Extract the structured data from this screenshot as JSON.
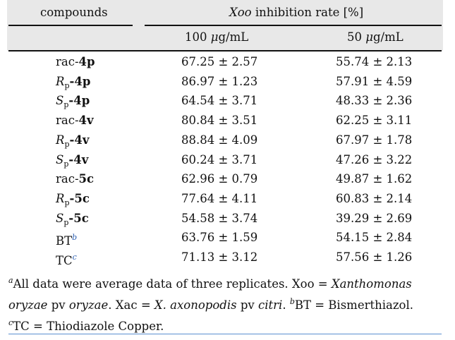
{
  "table": {
    "col_compounds": "compounds",
    "col_group_italic": "Xoo",
    "col_group_rest": "inhibition rate [%]",
    "col_conc_1_value": "100",
    "col_conc_1_unit_mu": "μ",
    "col_conc_1_unit_rest": "g/mL",
    "col_conc_2_value": "50",
    "col_conc_2_unit_mu": "μ",
    "col_conc_2_unit_rest": "g/mL",
    "rows": [
      {
        "prefix": "rac-",
        "prefix_sub": "",
        "name": "4p",
        "sup": "",
        "v100": "67.25 ± 2.57",
        "v50": "55.74 ± 2.13"
      },
      {
        "prefix": "R",
        "prefix_sub": "p",
        "name": "-4p",
        "sup": "",
        "v100": "86.97 ± 1.23",
        "v50": "57.91 ± 4.59"
      },
      {
        "prefix": "S",
        "prefix_sub": "p",
        "name": "-4p",
        "sup": "",
        "v100": "64.54 ± 3.71",
        "v50": "48.33 ± 2.36"
      },
      {
        "prefix": "rac-",
        "prefix_sub": "",
        "name": "4v",
        "sup": "",
        "v100": "80.84 ± 3.51",
        "v50": "62.25 ± 3.11"
      },
      {
        "prefix": "R",
        "prefix_sub": "p",
        "name": "-4v",
        "sup": "",
        "v100": "88.84 ± 4.09",
        "v50": "67.97 ± 1.78"
      },
      {
        "prefix": "S",
        "prefix_sub": "p",
        "name": "-4v",
        "sup": "",
        "v100": "60.24 ± 3.71",
        "v50": "47.26 ± 3.22"
      },
      {
        "prefix": "rac-",
        "prefix_sub": "",
        "name": "5c",
        "sup": "",
        "v100": "62.96 ± 0.79",
        "v50": "49.87 ± 1.62"
      },
      {
        "prefix": "R",
        "prefix_sub": "p",
        "name": "-5c",
        "sup": "",
        "v100": "77.64 ± 4.11",
        "v50": "60.83 ± 2.14"
      },
      {
        "prefix": "S",
        "prefix_sub": "p",
        "name": "-5c",
        "sup": "",
        "v100": "54.58 ± 3.74",
        "v50": "39.29 ± 2.69"
      },
      {
        "prefix": "",
        "prefix_sub": "",
        "name": "BT",
        "sup": "b",
        "v100": "63.76 ± 1.59",
        "v50": "54.15 ± 2.84"
      },
      {
        "prefix": "",
        "prefix_sub": "",
        "name": "TC",
        "sup": "c",
        "v100": "71.13 ± 3.12",
        "v50": "57.56 ± 1.26"
      }
    ]
  },
  "footnotes": {
    "a_mark": "a",
    "a_text_1": "All data were average data of three replicates. Xoo = ",
    "a_species_1": "Xanthomonas oryzae",
    "a_text_2": " pv ",
    "a_species_2": "oryzae",
    "a_text_3": ". Xac = ",
    "a_species_3": "X. axonopodis",
    "a_text_4": " pv ",
    "a_species_4": "citri",
    "a_text_5": ". ",
    "b_mark": "b",
    "b_text": "BT = Bismerthiazol.",
    "c_mark": "c",
    "c_text": "TC = Thiodiazole Copper."
  }
}
